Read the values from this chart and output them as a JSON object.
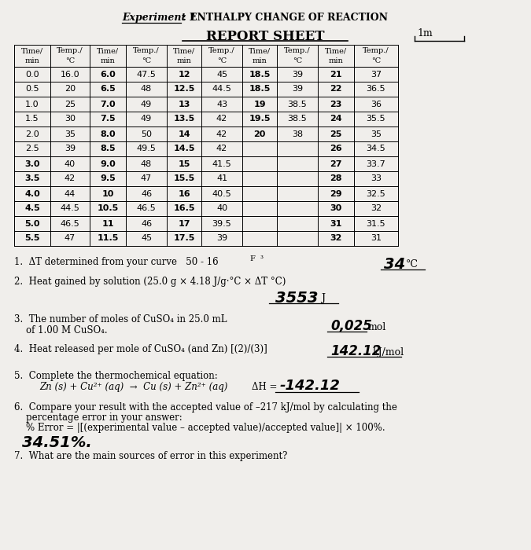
{
  "title_experiment": "Experiment 1",
  "title_experiment_rest": ": ENTHALPY CHANGE OF REACTION",
  "subtitle": "REPORT SHEET",
  "background_color": "#f0eeeb",
  "im_label": "1m",
  "col1": [
    "0.0",
    "0.5",
    "1.0",
    "1.5",
    "2.0",
    "2.5",
    "3.0",
    "3.5",
    "4.0",
    "4.5",
    "5.0",
    "5.5"
  ],
  "col2": [
    "16.0",
    "20",
    "25",
    "30",
    "35",
    "39",
    "40",
    "42",
    "44",
    "44.5",
    "46.5",
    "47"
  ],
  "col3": [
    "6.0",
    "6.5",
    "7.0",
    "7.5",
    "8.0",
    "8.5",
    "9.0",
    "9.5",
    "10",
    "10.5",
    "11",
    "11.5"
  ],
  "col4": [
    "47.5",
    "48",
    "49",
    "49",
    "50",
    "49.5",
    "48",
    "47",
    "46",
    "46.5",
    "46",
    "45"
  ],
  "col5": [
    "12",
    "12.5",
    "13",
    "13.5",
    "14",
    "14.5",
    "15",
    "15.5",
    "16",
    "16.5",
    "17",
    "17.5"
  ],
  "col6": [
    "45",
    "44.5",
    "43",
    "42",
    "42",
    "42",
    "41.5",
    "41",
    "40.5",
    "40",
    "39.5",
    "39"
  ],
  "col7": [
    "18.5",
    "18.5",
    "19",
    "19.5",
    "20",
    "",
    "",
    "",
    "",
    "",
    "",
    ""
  ],
  "col8": [
    "39",
    "39",
    "38.5",
    "38.5",
    "38",
    "",
    "",
    "",
    "",
    "",
    "",
    ""
  ],
  "col9": [
    "21",
    "22",
    "23",
    "24",
    "25",
    "26",
    "27",
    "28",
    "29",
    "30",
    "31",
    "32"
  ],
  "col10": [
    "37",
    "36.5",
    "36",
    "35.5",
    "35",
    "34.5",
    "33.7",
    "33",
    "32.5",
    "32",
    "31.5",
    "31"
  ],
  "q1_text": "1.  ΔT determined from your curve   50 - 16",
  "q1_label": "F  ³",
  "q1_answer": "34",
  "q1_unit": "°C",
  "q2_text": "2.  Heat gained by solution (25.0 g × 4.18 J/g·°C × ΔT °C)",
  "q2_answer": "3553",
  "q2_unit": "J",
  "q3_text1": "3.  The number of moles of CuSO₄ in 25.0 mL",
  "q3_text2": "    of 1.00 M CuSO₄.",
  "q3_answer": "0,025",
  "q3_unit": "mol",
  "q4_text": "4.  Heat released per mole of CuSO₄ (and Zn) [(2)/(3)]",
  "q4_answer": "142.12",
  "q4_unit": "kJ/mol",
  "q5_text": "5.  Complete the thermochemical equation:",
  "q5_equation": "Zn (s) + Cu²⁺ (aq)  →  Cu (s) + Zn²⁺ (aq)",
  "q5_delta": "ΔH = ",
  "q5_answer": "-142.12",
  "q6_text1": "6.  Compare your result with the accepted value of –217 kJ/mol by calculating the",
  "q6_text2": "    percentage error in your answer:",
  "q6_text3": "    % Error = |[(experimental value – accepted value)/accepted value]| × 100%.",
  "q6_answer": "34.51%.",
  "q7_text": "7.  What are the main sources of error in this experiment?"
}
